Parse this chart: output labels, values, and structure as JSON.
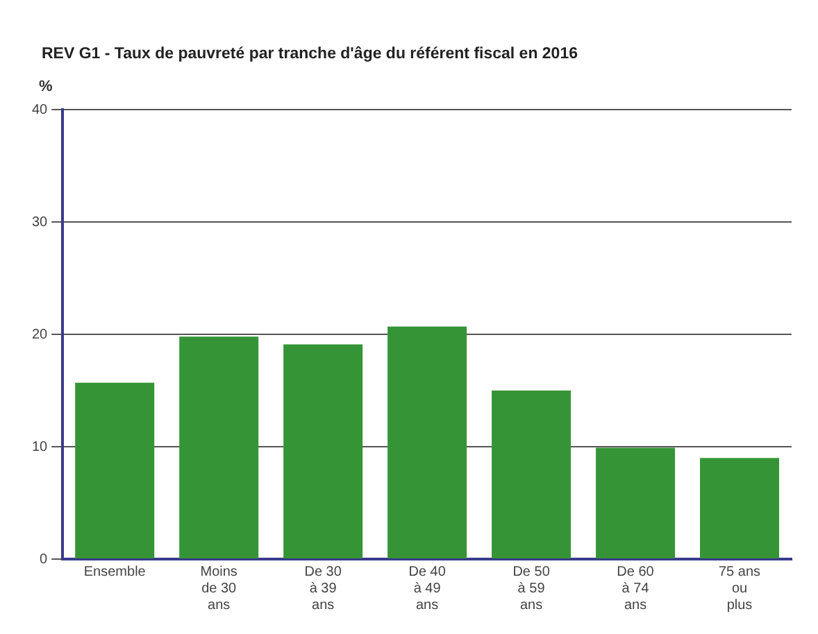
{
  "chart_data": {
    "type": "bar",
    "title": "REV G1 - Taux de pauvreté par tranche d'âge du référent fiscal en 2016",
    "ylabel": "%",
    "categories": [
      "Ensemble",
      "Moins de 30 ans",
      "De 30 à 39 ans",
      "De 40 à 49 ans",
      "De 50 à 59 ans",
      "De 60 à 74 ans",
      "75 ans ou plus"
    ],
    "values": [
      15.7,
      19.8,
      19.1,
      20.7,
      15.0,
      9.9,
      9.0
    ],
    "color": "#359436",
    "ylim": [
      0,
      40
    ],
    "yticks": [
      0,
      10,
      20,
      30,
      40
    ],
    "grid": "y",
    "legend": false
  }
}
